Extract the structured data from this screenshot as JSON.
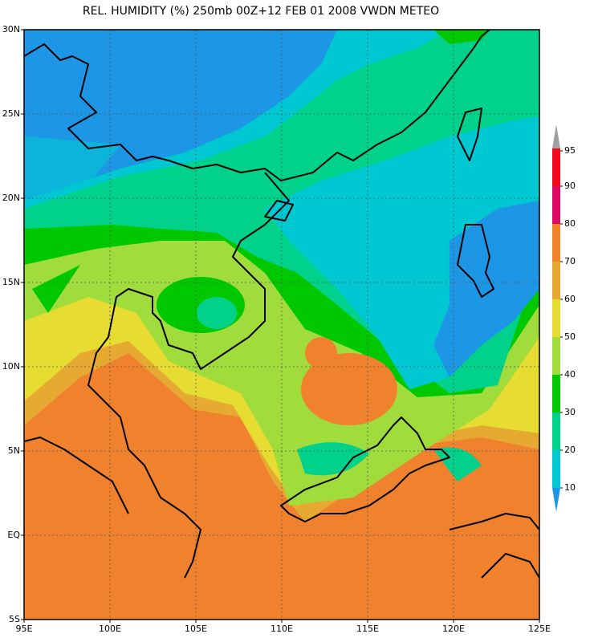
{
  "map": {
    "title": "REL. HUMIDITY (%) 250mb 00Z+12 FEB 01 2008 VWDN METEO",
    "lat_labels": [
      "30N",
      "25N",
      "20N",
      "15N",
      "10N",
      "5N",
      "EQ",
      "5S"
    ],
    "lon_labels": [
      "95E",
      "100E",
      "105E",
      "110E",
      "115E",
      "120E",
      "125E"
    ],
    "colorbar": {
      "labels": [
        "95",
        "90",
        "80",
        "70",
        "60",
        "50",
        "40",
        "30",
        "20",
        "10"
      ],
      "colors": [
        "#a0a0a0",
        "#f00a1e",
        "#dc0a64",
        "#f0822d",
        "#e6aa32",
        "#e6dc32",
        "#a0dc3c",
        "#00c800",
        "#00d28c",
        "#00c8d2",
        "#1e96e6"
      ]
    }
  }
}
